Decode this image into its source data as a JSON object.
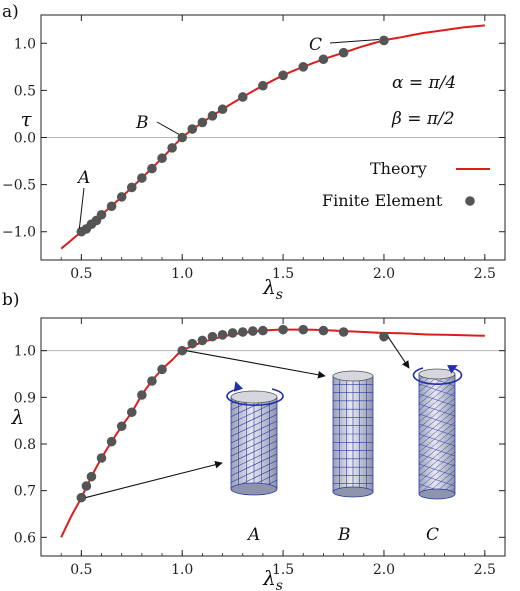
{
  "colors": {
    "theory": "#dd1c1c",
    "fe_points": "#555555",
    "arrow": "#111111",
    "twist_arrow": "#1f2fa8",
    "cylinder_grid": "#2a3aa8",
    "cylinder_face": "#d6d6de"
  },
  "chart_data": [
    {
      "panel": "a)",
      "type": "line",
      "xlabel": "λs",
      "ylabel": "τ",
      "xlim": [
        0.3,
        2.6
      ],
      "ylim": [
        -1.3,
        1.3
      ],
      "xticks": [
        "0.5",
        "1.0",
        "1.5",
        "2.0",
        "2.5"
      ],
      "yticks": [
        "-1.0",
        "-0.5",
        "0.0",
        "0.5",
        "1.0"
      ],
      "grid": false,
      "ref_line_y": 0,
      "legend": {
        "placement": "bottom-right",
        "entries": [
          "Theory",
          "Finite Element"
        ]
      },
      "params": [
        "α = π/4",
        "β = π/2"
      ],
      "annotations": [
        {
          "label": "A",
          "x": 0.5,
          "y": -1.0
        },
        {
          "label": "B",
          "x": 1.0,
          "y": 0.0
        },
        {
          "label": "C",
          "x": 2.0,
          "y": 1.03
        }
      ],
      "series": [
        {
          "name": "Theory",
          "x": [
            0.4,
            0.5,
            0.6,
            0.7,
            0.8,
            0.9,
            1.0,
            1.1,
            1.2,
            1.3,
            1.4,
            1.5,
            1.6,
            1.7,
            1.8,
            1.9,
            2.0,
            2.1,
            2.2,
            2.3,
            2.4,
            2.5
          ],
          "y": [
            -1.18,
            -1.0,
            -0.82,
            -0.63,
            -0.43,
            -0.22,
            0.0,
            0.16,
            0.3,
            0.43,
            0.55,
            0.66,
            0.75,
            0.83,
            0.9,
            0.97,
            1.03,
            1.07,
            1.11,
            1.14,
            1.17,
            1.19
          ]
        },
        {
          "name": "Finite Element",
          "x": [
            0.5,
            0.525,
            0.55,
            0.575,
            0.6,
            0.65,
            0.7,
            0.75,
            0.8,
            0.85,
            0.9,
            0.95,
            1.0,
            1.05,
            1.1,
            1.15,
            1.2,
            1.3,
            1.4,
            1.5,
            1.6,
            1.7,
            1.8,
            2.0
          ],
          "y": [
            -1.0,
            -0.97,
            -0.92,
            -0.88,
            -0.82,
            -0.73,
            -0.63,
            -0.53,
            -0.43,
            -0.33,
            -0.22,
            -0.11,
            0.0,
            0.09,
            0.16,
            0.23,
            0.3,
            0.43,
            0.55,
            0.66,
            0.75,
            0.83,
            0.9,
            1.03
          ]
        }
      ]
    },
    {
      "panel": "b)",
      "type": "line",
      "xlabel": "λs",
      "ylabel": "λ",
      "xlim": [
        0.3,
        2.6
      ],
      "ylim": [
        0.56,
        1.07
      ],
      "xticks": [
        "0.5",
        "1.0",
        "1.5",
        "2.0",
        "2.5"
      ],
      "yticks": [
        "0.6",
        "0.7",
        "0.8",
        "0.9",
        "1.0"
      ],
      "grid": false,
      "ref_line_y": 1.0,
      "series": [
        {
          "name": "Theory",
          "x": [
            0.4,
            0.45,
            0.5,
            0.55,
            0.6,
            0.65,
            0.7,
            0.75,
            0.8,
            0.85,
            0.9,
            0.95,
            1.0,
            1.1,
            1.2,
            1.3,
            1.4,
            1.5,
            1.6,
            1.7,
            1.8,
            1.9,
            2.0,
            2.1,
            2.2,
            2.3,
            2.4,
            2.5
          ],
          "y": [
            0.6,
            0.645,
            0.685,
            0.73,
            0.77,
            0.805,
            0.838,
            0.868,
            0.905,
            0.935,
            0.96,
            0.98,
            1.0,
            1.018,
            1.03,
            1.038,
            1.043,
            1.045,
            1.045,
            1.044,
            1.042,
            1.04,
            1.038,
            1.037,
            1.035,
            1.034,
            1.033,
            1.032
          ]
        },
        {
          "name": "Finite Element",
          "x": [
            0.5,
            0.525,
            0.55,
            0.6,
            0.65,
            0.7,
            0.75,
            0.8,
            0.85,
            0.9,
            1.0,
            1.05,
            1.1,
            1.15,
            1.2,
            1.25,
            1.3,
            1.35,
            1.4,
            1.5,
            1.6,
            1.7,
            1.8,
            2.0
          ],
          "y": [
            0.685,
            0.71,
            0.73,
            0.77,
            0.805,
            0.838,
            0.868,
            0.905,
            0.935,
            0.96,
            1.0,
            1.015,
            1.022,
            1.03,
            1.034,
            1.038,
            1.04,
            1.042,
            1.043,
            1.045,
            1.045,
            1.043,
            1.04,
            1.03
          ]
        }
      ],
      "inset_labels": [
        "A",
        "B",
        "C"
      ]
    }
  ]
}
